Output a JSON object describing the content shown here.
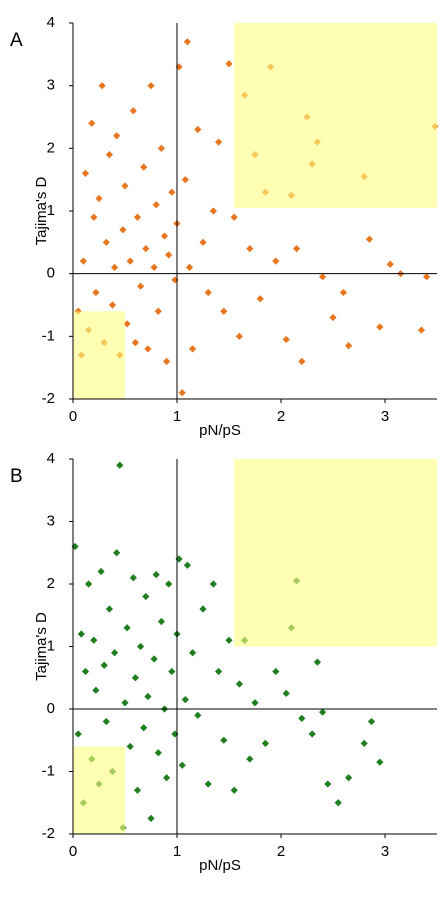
{
  "chart_data": [
    {
      "type": "scatter",
      "label": "A",
      "xlabel": "pN/pS",
      "ylabel": "Tajima's D",
      "color": "#e8761e",
      "xlim": [
        0,
        3.5
      ],
      "ylim": [
        -2,
        4
      ],
      "xticks": [
        0,
        1,
        2,
        3
      ],
      "yticks": [
        -2,
        -1,
        0,
        1,
        2,
        3,
        4
      ],
      "reference_lines": {
        "x": [
          1
        ],
        "y": [
          0
        ]
      },
      "highlight_color": "#ffff80",
      "highlight_regions": [
        {
          "xlim": [
            1.55,
            3.5
          ],
          "ylim": [
            1.05,
            4
          ]
        },
        {
          "xlim": [
            0,
            0.5
          ],
          "ylim": [
            -2,
            -0.6
          ]
        }
      ],
      "x": [
        0.05,
        0.08,
        0.1,
        0.12,
        0.15,
        0.18,
        0.2,
        0.22,
        0.25,
        0.28,
        0.3,
        0.32,
        0.35,
        0.38,
        0.4,
        0.42,
        0.45,
        0.48,
        0.5,
        0.52,
        0.55,
        0.58,
        0.6,
        0.62,
        0.65,
        0.68,
        0.7,
        0.72,
        0.75,
        0.78,
        0.8,
        0.82,
        0.85,
        0.88,
        0.9,
        0.92,
        0.95,
        0.98,
        1.0,
        1.02,
        1.05,
        1.08,
        1.1,
        1.12,
        1.15,
        1.2,
        1.25,
        1.3,
        1.35,
        1.4,
        1.45,
        1.5,
        1.55,
        1.6,
        1.65,
        1.7,
        1.75,
        1.8,
        1.85,
        1.9,
        1.95,
        2.05,
        2.1,
        2.15,
        2.2,
        2.25,
        2.3,
        2.35,
        2.4,
        2.5,
        2.6,
        2.65,
        2.8,
        2.85,
        2.95,
        3.05,
        3.15,
        3.35,
        3.4,
        3.48
      ],
      "values": [
        -0.6,
        -1.3,
        0.2,
        1.6,
        -0.9,
        2.4,
        0.9,
        -0.3,
        1.2,
        3.0,
        -1.1,
        0.5,
        1.9,
        -0.5,
        0.1,
        2.2,
        -1.3,
        0.7,
        1.4,
        -0.8,
        0.2,
        2.6,
        -1.1,
        0.9,
        -0.2,
        1.7,
        0.4,
        -1.2,
        3.0,
        0.1,
        1.1,
        -0.6,
        2.0,
        0.6,
        -1.4,
        0.3,
        1.3,
        -0.1,
        0.8,
        3.3,
        -1.9,
        1.5,
        3.7,
        0.1,
        -1.2,
        2.3,
        0.5,
        -0.3,
        1.0,
        2.1,
        -0.6,
        3.35,
        0.9,
        -1.0,
        2.85,
        0.4,
        1.9,
        -0.4,
        1.3,
        3.3,
        0.2,
        -1.05,
        1.25,
        0.4,
        -1.4,
        2.5,
        1.75,
        2.1,
        -0.05,
        -0.7,
        -0.3,
        -1.15,
        1.55,
        0.55,
        -0.85,
        0.15,
        0.0,
        -0.9,
        -0.05,
        2.35
      ]
    },
    {
      "type": "scatter",
      "label": "B",
      "xlabel": "pN/pS",
      "ylabel": "Tajima's D",
      "color": "#1f7f1f",
      "xlim": [
        0,
        3.5
      ],
      "ylim": [
        -2,
        4
      ],
      "xticks": [
        0,
        1,
        2,
        3
      ],
      "yticks": [
        -2,
        -1,
        0,
        1,
        2,
        3,
        4
      ],
      "reference_lines": {
        "x": [
          1
        ],
        "y": [
          0
        ]
      },
      "highlight_color": "#ffff80",
      "highlight_regions": [
        {
          "xlim": [
            1.55,
            3.5
          ],
          "ylim": [
            1.0,
            4
          ]
        },
        {
          "xlim": [
            0,
            0.5
          ],
          "ylim": [
            -2,
            -0.6
          ]
        }
      ],
      "x": [
        0.02,
        0.05,
        0.08,
        0.1,
        0.12,
        0.15,
        0.18,
        0.2,
        0.22,
        0.25,
        0.27,
        0.3,
        0.32,
        0.35,
        0.38,
        0.4,
        0.42,
        0.45,
        0.48,
        0.5,
        0.52,
        0.55,
        0.58,
        0.6,
        0.62,
        0.65,
        0.68,
        0.7,
        0.72,
        0.75,
        0.78,
        0.8,
        0.82,
        0.85,
        0.88,
        0.9,
        0.92,
        0.95,
        0.98,
        1.0,
        1.02,
        1.05,
        1.08,
        1.1,
        1.15,
        1.2,
        1.25,
        1.3,
        1.35,
        1.4,
        1.45,
        1.5,
        1.55,
        1.6,
        1.65,
        1.7,
        1.75,
        1.85,
        1.95,
        2.05,
        2.1,
        2.15,
        2.2,
        2.3,
        2.35,
        2.4,
        2.45,
        2.55,
        2.65,
        2.8,
        2.87,
        2.95
      ],
      "values": [
        2.6,
        -0.4,
        1.2,
        -1.5,
        0.6,
        2.0,
        -0.8,
        1.1,
        0.3,
        -1.2,
        2.2,
        0.7,
        -0.2,
        1.6,
        -1.0,
        0.9,
        2.5,
        3.9,
        -1.9,
        0.1,
        1.3,
        -0.6,
        2.1,
        0.5,
        -1.3,
        1.0,
        -0.3,
        1.8,
        0.2,
        -1.75,
        0.8,
        2.15,
        -0.7,
        1.4,
        0.0,
        -1.1,
        2.0,
        0.6,
        -0.4,
        1.2,
        2.4,
        -0.9,
        0.15,
        2.3,
        0.9,
        -0.1,
        1.6,
        -1.2,
        2.0,
        0.6,
        -0.5,
        1.1,
        -1.3,
        0.4,
        1.1,
        -0.8,
        0.1,
        -0.55,
        0.6,
        0.25,
        1.3,
        2.05,
        -0.15,
        -0.4,
        0.75,
        -0.05,
        -1.2,
        -1.5,
        -1.1,
        -0.55,
        -0.2,
        -0.85
      ]
    }
  ]
}
